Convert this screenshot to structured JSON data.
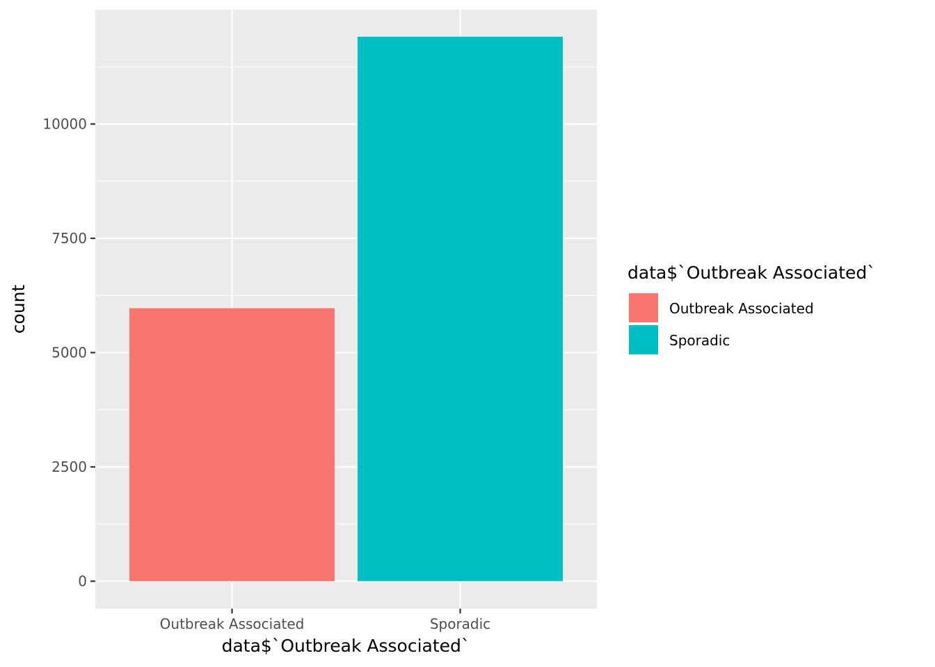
{
  "chart_data": {
    "type": "bar",
    "categories": [
      "Outbreak Associated",
      "Sporadic"
    ],
    "values": [
      5970,
      11910
    ],
    "colors": [
      "#F8766D",
      "#00BFC4"
    ],
    "xlabel": "data$`Outbreak Associated`",
    "ylabel": "count",
    "ylim": [
      0,
      12500
    ],
    "yticks": [
      0,
      2500,
      5000,
      7500,
      10000
    ],
    "ytick_labels": [
      "0",
      "2500",
      "5000",
      "7500",
      "10000"
    ],
    "grid": true,
    "panel_background": "#EBEBEB",
    "legend": {
      "title": "data$`Outbreak Associated`",
      "position": "right",
      "items": [
        {
          "label": "Outbreak Associated",
          "color": "#F8766D"
        },
        {
          "label": "Sporadic",
          "color": "#00BFC4"
        }
      ]
    }
  }
}
